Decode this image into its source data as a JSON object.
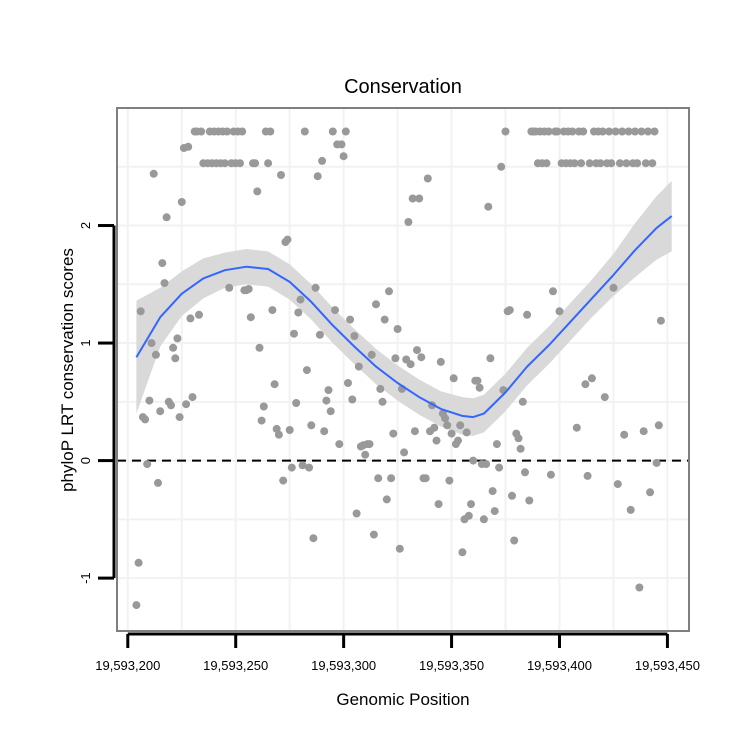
{
  "chart_data": {
    "type": "scatter",
    "title": "Conservation",
    "xlabel": "Genomic Position",
    "ylabel": "phyloP LRT conservation scores",
    "xlim": [
      19593195,
      19593460
    ],
    "ylim": [
      -1.45,
      3.0
    ],
    "x_ticks": [
      19593200,
      19593250,
      19593300,
      19593350,
      19593400,
      19593450
    ],
    "x_tick_labels": [
      "19,593,200",
      "19,593,250",
      "19,593,300",
      "19,593,350",
      "19,593,400",
      "19,593,450"
    ],
    "y_ticks": [
      -1,
      0,
      1,
      2
    ],
    "y_tick_labels": [
      "-1",
      "0",
      "1",
      "2"
    ],
    "reference_line": {
      "y": 0,
      "style": "dashed"
    },
    "colors": {
      "points": "#999999",
      "smooth": "#3366ff",
      "ribbon": "#d9d9d9",
      "frame": "#7f7f7f",
      "grid": "#f2f2f2"
    },
    "smooth": {
      "x": [
        19593204,
        19593215,
        19593225,
        19593235,
        19593245,
        19593255,
        19593265,
        19593275,
        19593285,
        19593295,
        19593305,
        19593315,
        19593325,
        19593335,
        19593345,
        19593355,
        19593360,
        19593365,
        19593375,
        19593385,
        19593395,
        19593405,
        19593415,
        19593425,
        19593435,
        19593445,
        19593452
      ],
      "y": [
        0.88,
        1.22,
        1.42,
        1.55,
        1.62,
        1.65,
        1.63,
        1.52,
        1.35,
        1.15,
        0.97,
        0.8,
        0.66,
        0.54,
        0.44,
        0.38,
        0.37,
        0.4,
        0.58,
        0.8,
        0.98,
        1.18,
        1.38,
        1.58,
        1.79,
        1.98,
        2.08
      ],
      "lower": [
        0.4,
        0.97,
        1.23,
        1.38,
        1.47,
        1.5,
        1.48,
        1.37,
        1.2,
        1.0,
        0.82,
        0.65,
        0.51,
        0.39,
        0.29,
        0.22,
        0.21,
        0.24,
        0.42,
        0.64,
        0.82,
        1.02,
        1.22,
        1.4,
        1.56,
        1.71,
        1.78
      ],
      "upper": [
        1.36,
        1.47,
        1.61,
        1.72,
        1.77,
        1.8,
        1.78,
        1.67,
        1.5,
        1.3,
        1.12,
        0.95,
        0.81,
        0.69,
        0.59,
        0.54,
        0.53,
        0.56,
        0.74,
        0.96,
        1.14,
        1.34,
        1.54,
        1.76,
        2.02,
        2.25,
        2.38
      ]
    },
    "points": [
      [
        19593204,
        -1.23
      ],
      [
        19593205,
        -0.87
      ],
      [
        19593206,
        1.27
      ],
      [
        19593207,
        0.37
      ],
      [
        19593208,
        0.35
      ],
      [
        19593209,
        -0.03
      ],
      [
        19593210,
        0.51
      ],
      [
        19593211,
        1.0
      ],
      [
        19593212,
        2.44
      ],
      [
        19593213,
        0.9
      ],
      [
        19593214,
        -0.19
      ],
      [
        19593215,
        0.42
      ],
      [
        19593216,
        1.68
      ],
      [
        19593217,
        1.51
      ],
      [
        19593218,
        2.07
      ],
      [
        19593219,
        0.5
      ],
      [
        19593220,
        0.47
      ],
      [
        19593221,
        0.96
      ],
      [
        19593222,
        0.87
      ],
      [
        19593223,
        1.04
      ],
      [
        19593224,
        0.37
      ],
      [
        19593225,
        2.2
      ],
      [
        19593226,
        2.66
      ],
      [
        19593227,
        0.48
      ],
      [
        19593228,
        2.67
      ],
      [
        19593229,
        1.21
      ],
      [
        19593230,
        0.54
      ],
      [
        19593231,
        2.8
      ],
      [
        19593232,
        2.8
      ],
      [
        19593233,
        1.24
      ],
      [
        19593234,
        2.8
      ],
      [
        19593235,
        2.53
      ],
      [
        19593237,
        2.53
      ],
      [
        19593238,
        2.8
      ],
      [
        19593239,
        2.53
      ],
      [
        19593240,
        2.8
      ],
      [
        19593241,
        2.53
      ],
      [
        19593242,
        2.8
      ],
      [
        19593243,
        2.53
      ],
      [
        19593244,
        2.8
      ],
      [
        19593245,
        2.53
      ],
      [
        19593246,
        2.8
      ],
      [
        19593247,
        1.47
      ],
      [
        19593248,
        2.53
      ],
      [
        19593249,
        2.8
      ],
      [
        19593250,
        2.53
      ],
      [
        19593251,
        2.8
      ],
      [
        19593252,
        2.53
      ],
      [
        19593253,
        2.8
      ],
      [
        19593254,
        1.45
      ],
      [
        19593255,
        1.45
      ],
      [
        19593256,
        1.46
      ],
      [
        19593257,
        1.22
      ],
      [
        19593258,
        2.53
      ],
      [
        19593259,
        2.53
      ],
      [
        19593260,
        2.29
      ],
      [
        19593261,
        0.96
      ],
      [
        19593262,
        0.34
      ],
      [
        19593263,
        0.46
      ],
      [
        19593264,
        2.8
      ],
      [
        19593265,
        2.53
      ],
      [
        19593266,
        2.8
      ],
      [
        19593267,
        1.28
      ],
      [
        19593268,
        0.65
      ],
      [
        19593269,
        0.27
      ],
      [
        19593270,
        0.22
      ],
      [
        19593271,
        2.43
      ],
      [
        19593272,
        -0.17
      ],
      [
        19593273,
        1.86
      ],
      [
        19593274,
        1.88
      ],
      [
        19593275,
        0.26
      ],
      [
        19593276,
        -0.06
      ],
      [
        19593277,
        1.08
      ],
      [
        19593278,
        0.49
      ],
      [
        19593279,
        1.26
      ],
      [
        19593280,
        1.37
      ],
      [
        19593281,
        -0.04
      ],
      [
        19593282,
        2.8
      ],
      [
        19593283,
        0.77
      ],
      [
        19593284,
        -0.06
      ],
      [
        19593285,
        0.3
      ],
      [
        19593286,
        -0.66
      ],
      [
        19593287,
        1.47
      ],
      [
        19593288,
        2.42
      ],
      [
        19593289,
        1.07
      ],
      [
        19593290,
        2.55
      ],
      [
        19593291,
        0.25
      ],
      [
        19593292,
        0.51
      ],
      [
        19593293,
        0.6
      ],
      [
        19593294,
        0.42
      ],
      [
        19593295,
        2.8
      ],
      [
        19593296,
        1.28
      ],
      [
        19593297,
        2.69
      ],
      [
        19593298,
        0.14
      ],
      [
        19593299,
        2.69
      ],
      [
        19593300,
        2.59
      ],
      [
        19593301,
        2.8
      ],
      [
        19593302,
        0.66
      ],
      [
        19593303,
        1.2
      ],
      [
        19593304,
        0.52
      ],
      [
        19593305,
        1.06
      ],
      [
        19593306,
        -0.45
      ],
      [
        19593307,
        0.8
      ],
      [
        19593308,
        0.12
      ],
      [
        19593309,
        0.13
      ],
      [
        19593310,
        0.05
      ],
      [
        19593311,
        0.14
      ],
      [
        19593312,
        0.14
      ],
      [
        19593313,
        0.9
      ],
      [
        19593314,
        -0.63
      ],
      [
        19593315,
        1.33
      ],
      [
        19593316,
        -0.15
      ],
      [
        19593317,
        0.61
      ],
      [
        19593318,
        0.5
      ],
      [
        19593319,
        1.2
      ],
      [
        19593320,
        -0.33
      ],
      [
        19593321,
        1.44
      ],
      [
        19593322,
        -0.15
      ],
      [
        19593323,
        0.23
      ],
      [
        19593324,
        0.87
      ],
      [
        19593325,
        1.12
      ],
      [
        19593326,
        -0.75
      ],
      [
        19593327,
        0.61
      ],
      [
        19593328,
        0.07
      ],
      [
        19593329,
        0.86
      ],
      [
        19593330,
        2.03
      ],
      [
        19593331,
        0.82
      ],
      [
        19593332,
        2.23
      ],
      [
        19593333,
        0.25
      ],
      [
        19593334,
        0.94
      ],
      [
        19593335,
        2.23
      ],
      [
        19593336,
        0.88
      ],
      [
        19593337,
        -0.15
      ],
      [
        19593338,
        -0.15
      ],
      [
        19593339,
        2.4
      ],
      [
        19593340,
        0.25
      ],
      [
        19593341,
        0.47
      ],
      [
        19593342,
        0.28
      ],
      [
        19593343,
        0.17
      ],
      [
        19593344,
        -0.37
      ],
      [
        19593345,
        0.84
      ],
      [
        19593346,
        0.4
      ],
      [
        19593347,
        0.36
      ],
      [
        19593348,
        0.3
      ],
      [
        19593349,
        -0.17
      ],
      [
        19593350,
        0.23
      ],
      [
        19593351,
        0.7
      ],
      [
        19593352,
        0.14
      ],
      [
        19593353,
        0.17
      ],
      [
        19593354,
        0.3
      ],
      [
        19593355,
        -0.78
      ],
      [
        19593356,
        -0.5
      ],
      [
        19593357,
        0.24
      ],
      [
        19593358,
        -0.47
      ],
      [
        19593359,
        -0.37
      ],
      [
        19593360,
        0.0
      ],
      [
        19593361,
        0.68
      ],
      [
        19593362,
        0.68
      ],
      [
        19593363,
        0.62
      ],
      [
        19593364,
        -0.03
      ],
      [
        19593365,
        -0.5
      ],
      [
        19593366,
        -0.03
      ],
      [
        19593367,
        2.16
      ],
      [
        19593368,
        0.87
      ],
      [
        19593369,
        -0.26
      ],
      [
        19593370,
        -0.43
      ],
      [
        19593371,
        0.14
      ],
      [
        19593372,
        -0.06
      ],
      [
        19593373,
        2.5
      ],
      [
        19593374,
        0.6
      ],
      [
        19593375,
        2.8
      ],
      [
        19593376,
        1.27
      ],
      [
        19593377,
        1.28
      ],
      [
        19593378,
        -0.3
      ],
      [
        19593379,
        -0.68
      ],
      [
        19593380,
        0.23
      ],
      [
        19593381,
        0.19
      ],
      [
        19593382,
        0.1
      ],
      [
        19593383,
        0.5
      ],
      [
        19593384,
        -0.1
      ],
      [
        19593385,
        1.24
      ],
      [
        19593386,
        -0.34
      ],
      [
        19593387,
        2.8
      ],
      [
        19593388,
        2.8
      ],
      [
        19593389,
        2.8
      ],
      [
        19593390,
        2.53
      ],
      [
        19593391,
        2.8
      ],
      [
        19593392,
        2.53
      ],
      [
        19593393,
        2.8
      ],
      [
        19593394,
        2.53
      ],
      [
        19593395,
        2.8
      ],
      [
        19593396,
        -0.12
      ],
      [
        19593397,
        1.44
      ],
      [
        19593398,
        2.8
      ],
      [
        19593399,
        2.8
      ],
      [
        19593400,
        1.27
      ],
      [
        19593401,
        2.53
      ],
      [
        19593402,
        2.8
      ],
      [
        19593403,
        2.53
      ],
      [
        19593404,
        2.8
      ],
      [
        19593405,
        2.53
      ],
      [
        19593406,
        2.8
      ],
      [
        19593407,
        2.53
      ],
      [
        19593408,
        0.28
      ],
      [
        19593409,
        2.8
      ],
      [
        19593410,
        2.53
      ],
      [
        19593411,
        2.8
      ],
      [
        19593412,
        0.65
      ],
      [
        19593413,
        -0.13
      ],
      [
        19593414,
        2.53
      ],
      [
        19593415,
        0.7
      ],
      [
        19593416,
        2.8
      ],
      [
        19593417,
        2.53
      ],
      [
        19593418,
        2.8
      ],
      [
        19593419,
        2.53
      ],
      [
        19593420,
        2.8
      ],
      [
        19593421,
        0.54
      ],
      [
        19593422,
        2.53
      ],
      [
        19593423,
        2.8
      ],
      [
        19593424,
        2.53
      ],
      [
        19593425,
        1.47
      ],
      [
        19593426,
        2.8
      ],
      [
        19593427,
        -0.2
      ],
      [
        19593428,
        2.53
      ],
      [
        19593429,
        2.8
      ],
      [
        19593430,
        0.22
      ],
      [
        19593431,
        2.53
      ],
      [
        19593432,
        2.8
      ],
      [
        19593433,
        -0.42
      ],
      [
        19593434,
        2.53
      ],
      [
        19593435,
        2.8
      ],
      [
        19593436,
        2.53
      ],
      [
        19593437,
        -1.08
      ],
      [
        19593438,
        2.8
      ],
      [
        19593439,
        0.25
      ],
      [
        19593440,
        2.53
      ],
      [
        19593441,
        2.8
      ],
      [
        19593442,
        -0.27
      ],
      [
        19593443,
        2.53
      ],
      [
        19593444,
        2.8
      ],
      [
        19593445,
        -0.02
      ],
      [
        19593446,
        0.3
      ],
      [
        19593447,
        1.19
      ]
    ]
  }
}
